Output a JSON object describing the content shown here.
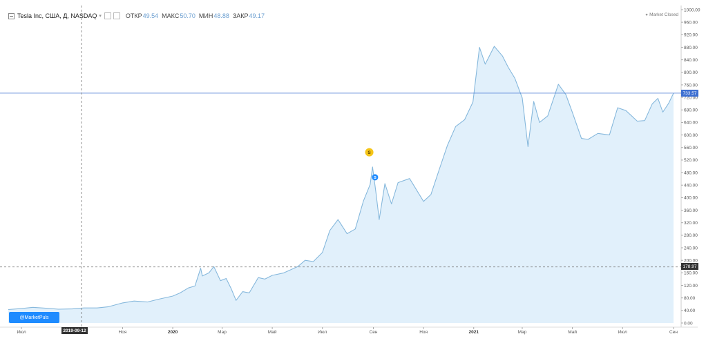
{
  "header": {
    "title": "Tesla Inc, США, Д, NASDAQ",
    "open_label": "ОТКР",
    "open_value": "49.54",
    "high_label": "МАКС",
    "high_value": "50.70",
    "low_label": "МИН",
    "low_value": "48.88",
    "close_label": "ЗАКР",
    "close_value": "49.17"
  },
  "status": "Market Closed",
  "watermark": "@MarketPuls",
  "crosshair": {
    "date": "2019-09-12",
    "price": "178.97"
  },
  "current_price": "733.57",
  "colors": {
    "line": "#86b8dc",
    "fill": "#e1f0fb",
    "current": "#3d6fd1",
    "event_dividend": "#f5c518",
    "event_split": "#1e8bff"
  },
  "events": [
    {
      "type": "dividend",
      "label": "S",
      "date": "2020-08"
    },
    {
      "type": "split",
      "label": "S",
      "date": "2020-08-31"
    }
  ],
  "chart_data": {
    "type": "area",
    "title": "",
    "xlabel": "",
    "ylabel": "",
    "ylim": [
      0,
      1000
    ],
    "y_ticks": [
      "0.00",
      "40.00",
      "80.00",
      "120.00",
      "160.00",
      "200.00",
      "240.00",
      "280.00",
      "320.00",
      "360.00",
      "400.00",
      "440.00",
      "480.00",
      "520.00",
      "560.00",
      "600.00",
      "640.00",
      "680.00",
      "720.00",
      "760.00",
      "800.00",
      "840.00",
      "880.00",
      "920.00",
      "960.00",
      "1000.00"
    ],
    "x_ticks": [
      {
        "label": "Июл",
        "date": "2019-07-01"
      },
      {
        "label": "Ноя",
        "date": "2019-11-01"
      },
      {
        "label": "2020",
        "date": "2020-01-01",
        "bold": true
      },
      {
        "label": "Мар",
        "date": "2020-03-01"
      },
      {
        "label": "Май",
        "date": "2020-05-01"
      },
      {
        "label": "Июл",
        "date": "2020-07-01"
      },
      {
        "label": "Сен",
        "date": "2020-09-01"
      },
      {
        "label": "Ноя",
        "date": "2020-11-01"
      },
      {
        "label": "2021",
        "date": "2021-01-01",
        "bold": true
      },
      {
        "label": "Мар",
        "date": "2021-03-01"
      },
      {
        "label": "Май",
        "date": "2021-05-01"
      },
      {
        "label": "Июл",
        "date": "2021-07-01"
      },
      {
        "label": "Сен",
        "date": "2021-09-01"
      }
    ],
    "x_range": [
      "2019-06-15",
      "2021-09-01"
    ],
    "series": [
      {
        "points": [
          [
            "2019-06-15",
            43
          ],
          [
            "2019-07-01",
            46
          ],
          [
            "2019-07-15",
            50
          ],
          [
            "2019-08-01",
            47
          ],
          [
            "2019-08-15",
            44
          ],
          [
            "2019-09-01",
            45
          ],
          [
            "2019-09-15",
            48
          ],
          [
            "2019-10-01",
            48
          ],
          [
            "2019-10-15",
            52
          ],
          [
            "2019-11-01",
            64
          ],
          [
            "2019-11-15",
            70
          ],
          [
            "2019-12-01",
            67
          ],
          [
            "2019-12-15",
            76
          ],
          [
            "2020-01-01",
            86
          ],
          [
            "2020-01-10",
            96
          ],
          [
            "2020-01-20",
            112
          ],
          [
            "2020-01-28",
            118
          ],
          [
            "2020-02-04",
            175
          ],
          [
            "2020-02-06",
            150
          ],
          [
            "2020-02-14",
            160
          ],
          [
            "2020-02-20",
            180
          ],
          [
            "2020-02-28",
            135
          ],
          [
            "2020-03-06",
            142
          ],
          [
            "2020-03-12",
            110
          ],
          [
            "2020-03-18",
            72
          ],
          [
            "2020-03-26",
            100
          ],
          [
            "2020-04-03",
            96
          ],
          [
            "2020-04-14",
            145
          ],
          [
            "2020-04-22",
            140
          ],
          [
            "2020-05-01",
            152
          ],
          [
            "2020-05-15",
            160
          ],
          [
            "2020-06-01",
            180
          ],
          [
            "2020-06-10",
            200
          ],
          [
            "2020-06-20",
            196
          ],
          [
            "2020-07-01",
            225
          ],
          [
            "2020-07-10",
            295
          ],
          [
            "2020-07-20",
            330
          ],
          [
            "2020-07-31",
            285
          ],
          [
            "2020-08-10",
            300
          ],
          [
            "2020-08-20",
            390
          ],
          [
            "2020-08-28",
            442
          ],
          [
            "2020-08-31",
            498
          ],
          [
            "2020-09-04",
            418
          ],
          [
            "2020-09-08",
            330
          ],
          [
            "2020-09-15",
            445
          ],
          [
            "2020-09-23",
            380
          ],
          [
            "2020-10-01",
            448
          ],
          [
            "2020-10-15",
            461
          ],
          [
            "2020-11-01",
            388
          ],
          [
            "2020-11-10",
            410
          ],
          [
            "2020-11-20",
            489
          ],
          [
            "2020-11-30",
            567
          ],
          [
            "2020-12-10",
            627
          ],
          [
            "2020-12-21",
            649
          ],
          [
            "2020-12-31",
            705
          ],
          [
            "2021-01-08",
            880
          ],
          [
            "2021-01-15",
            826
          ],
          [
            "2021-01-26",
            883
          ],
          [
            "2021-02-05",
            852
          ],
          [
            "2021-02-12",
            816
          ],
          [
            "2021-02-20",
            781
          ],
          [
            "2021-03-01",
            718
          ],
          [
            "2021-03-08",
            563
          ],
          [
            "2021-03-15",
            707
          ],
          [
            "2021-03-22",
            640
          ],
          [
            "2021-04-01",
            661
          ],
          [
            "2021-04-14",
            762
          ],
          [
            "2021-04-23",
            729
          ],
          [
            "2021-05-01",
            672
          ],
          [
            "2021-05-12",
            589
          ],
          [
            "2021-05-20",
            586
          ],
          [
            "2021-06-01",
            605
          ],
          [
            "2021-06-15",
            600
          ],
          [
            "2021-06-25",
            687
          ],
          [
            "2021-07-05",
            678
          ],
          [
            "2021-07-19",
            644
          ],
          [
            "2021-07-28",
            646
          ],
          [
            "2021-08-06",
            699
          ],
          [
            "2021-08-13",
            717
          ],
          [
            "2021-08-19",
            673
          ],
          [
            "2021-08-26",
            701
          ],
          [
            "2021-09-01",
            733.57
          ]
        ]
      }
    ]
  }
}
